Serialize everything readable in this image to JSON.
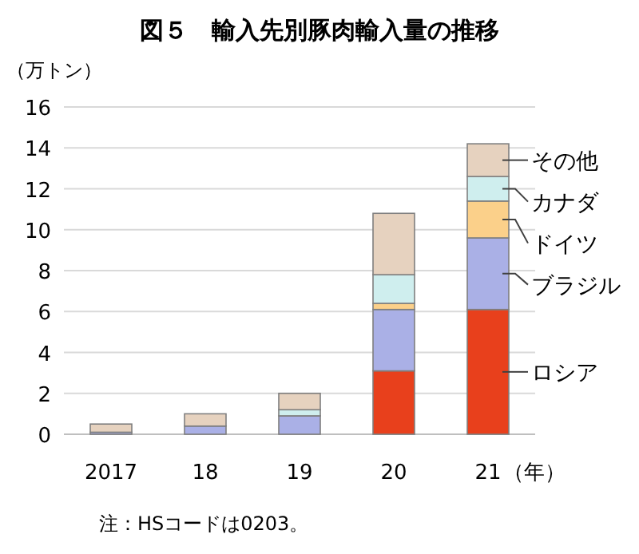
{
  "chart_data": {
    "type": "bar",
    "stacked": true,
    "title": "図５　輸入先別豚肉輸入量の推移",
    "ylabel": "（万トン）",
    "xlabel": "（年）",
    "categories": [
      "2017",
      "18",
      "19",
      "20",
      "21"
    ],
    "ylim": [
      0,
      16
    ],
    "yticks": [
      0,
      2,
      4,
      6,
      8,
      10,
      12,
      14,
      16
    ],
    "grid": "y",
    "legend": "right",
    "series": [
      {
        "name": "ロシア",
        "color": "#e8401c",
        "values": [
          0,
          0,
          0,
          3.1,
          6.1
        ]
      },
      {
        "name": "ブラジル",
        "color": "#aab0e6",
        "values": [
          0.1,
          0.4,
          0.9,
          3.0,
          3.5
        ]
      },
      {
        "name": "ドイツ",
        "color": "#fbd08a",
        "values": [
          0,
          0,
          0,
          0.3,
          1.8
        ]
      },
      {
        "name": "カナダ",
        "color": "#cfeeee",
        "values": [
          0,
          0,
          0.3,
          1.4,
          1.2
        ]
      },
      {
        "name": "その他",
        "color": "#e6d2bf",
        "values": [
          0.4,
          0.6,
          0.8,
          3.0,
          1.6
        ]
      }
    ],
    "annotations": [
      "注：HSコードは0203。"
    ]
  }
}
